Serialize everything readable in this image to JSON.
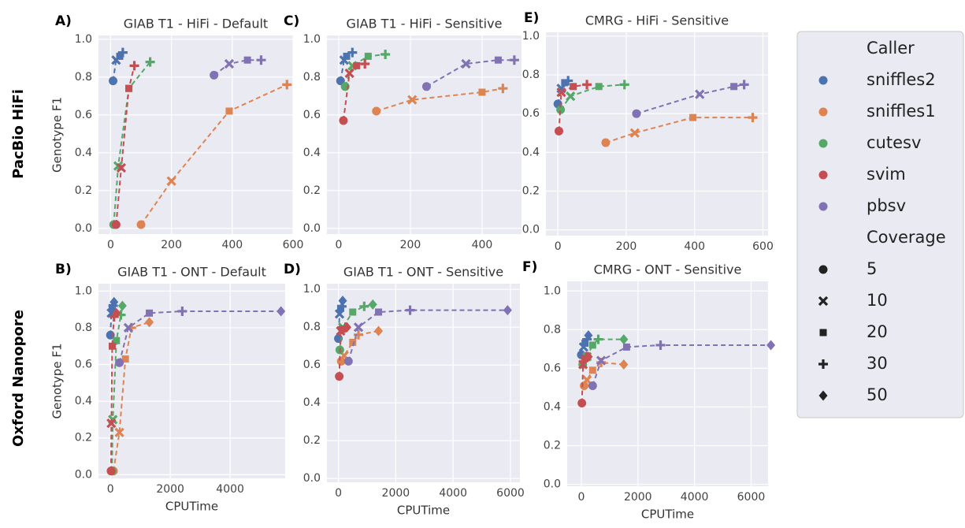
{
  "row_labels": [
    "PacBio HiFi",
    "Oxford Nanopore"
  ],
  "legend": {
    "caller_title": "Caller",
    "callers": [
      {
        "name": "sniffles2",
        "color": "#4c72b0"
      },
      {
        "name": "sniffles1",
        "color": "#dd8452"
      },
      {
        "name": "cutesv",
        "color": "#55a868"
      },
      {
        "name": "svim",
        "color": "#c44e52"
      },
      {
        "name": "pbsv",
        "color": "#8172b3"
      }
    ],
    "coverage_title": "Coverage",
    "coverages": [
      {
        "value": 5,
        "marker": "circle"
      },
      {
        "value": 10,
        "marker": "x"
      },
      {
        "value": 20,
        "marker": "square"
      },
      {
        "value": 30,
        "marker": "plus"
      },
      {
        "value": 50,
        "marker": "diamond"
      }
    ]
  },
  "chart_data": [
    {
      "type": "line",
      "panel": "A)",
      "title": "GIAB T1 - HiFi - Default",
      "ylabel": "Genotype F1",
      "xlim": [
        -40,
        600
      ],
      "ylim": [
        -0.03,
        1.02
      ],
      "xticks": [
        0,
        200,
        400,
        600
      ],
      "yticks": [
        {
          "value": 0,
          "label": "0.0"
        },
        0.2,
        0.4,
        0.6,
        0.8,
        {
          "value": 1,
          "label": "1.0"
        }
      ],
      "grid": true,
      "series": [
        {
          "color": "#4c72b0",
          "x": [
            8,
            18,
            30,
            40
          ],
          "values": [
            0.78,
            0.89,
            0.91,
            0.93
          ],
          "markers": [
            "circle",
            "x",
            "square",
            "plus"
          ]
        },
        {
          "color": "#dd8452",
          "x": [
            100,
            200,
            390,
            580
          ],
          "values": [
            0.02,
            0.25,
            0.62,
            0.76
          ],
          "markers": [
            "circle",
            "x",
            "square",
            "plus"
          ]
        },
        {
          "color": "#55a868",
          "x": [
            10,
            25,
            60,
            130
          ],
          "values": [
            0.02,
            0.33,
            0.74,
            0.88
          ],
          "markers": [
            "circle",
            "x",
            "square",
            "plus"
          ]
        },
        {
          "color": "#c44e52",
          "x": [
            18,
            35,
            60,
            78
          ],
          "values": [
            0.02,
            0.32,
            0.74,
            0.86
          ],
          "markers": [
            "circle",
            "x",
            "square",
            "plus"
          ]
        },
        {
          "color": "#8172b3",
          "x": [
            340,
            390,
            450,
            495
          ],
          "values": [
            0.81,
            0.87,
            0.89,
            0.89
          ],
          "markers": [
            "circle",
            "x",
            "square",
            "plus"
          ]
        }
      ]
    },
    {
      "type": "line",
      "panel": "B)",
      "title": "GIAB T1 - ONT - Default",
      "ylabel": "Genotype F1",
      "xlabel": "CPUTime",
      "xlim": [
        -400,
        5840
      ],
      "ylim": [
        -0.02,
        1.04
      ],
      "xticks": [
        0,
        2000,
        4000
      ],
      "yticks": [
        {
          "value": 0,
          "label": "0.0"
        },
        0.2,
        0.4,
        0.6,
        0.8,
        {
          "value": 1,
          "label": "1.0"
        }
      ],
      "grid": true,
      "series": [
        {
          "color": "#4c72b0",
          "x": [
            0,
            30,
            60,
            90,
            120
          ],
          "values": [
            0.76,
            0.88,
            0.91,
            0.92,
            0.94
          ],
          "markers": [
            "circle",
            "x",
            "square",
            "plus",
            "diamond"
          ]
        },
        {
          "color": "#dd8452",
          "x": [
            100,
            300,
            500,
            700,
            1300
          ],
          "values": [
            0.02,
            0.23,
            0.63,
            0.8,
            0.83
          ],
          "markers": [
            "circle",
            "x",
            "square",
            "plus",
            "diamond"
          ]
        },
        {
          "color": "#55a868",
          "x": [
            50,
            80,
            200,
            350,
            400
          ],
          "values": [
            0.02,
            0.3,
            0.73,
            0.87,
            0.92
          ],
          "markers": [
            "circle",
            "x",
            "square",
            "plus",
            "diamond"
          ]
        },
        {
          "color": "#c44e52",
          "x": [
            20,
            30,
            60,
            120,
            200
          ],
          "values": [
            0.02,
            0.28,
            0.7,
            0.86,
            0.88
          ],
          "markers": [
            "circle",
            "x",
            "square",
            "plus",
            "diamond"
          ]
        },
        {
          "color": "#8172b3",
          "x": [
            300,
            600,
            1300,
            2400,
            5700
          ],
          "values": [
            0.61,
            0.8,
            0.88,
            0.89,
            0.89
          ],
          "markers": [
            "circle",
            "x",
            "square",
            "plus",
            "diamond"
          ]
        }
      ]
    },
    {
      "type": "line",
      "panel": "C)",
      "title": "GIAB T1 - HiFi - Sensitive",
      "xlim": [
        -33,
        510
      ],
      "ylim": [
        -0.03,
        1.02
      ],
      "xticks": [
        0,
        200,
        400
      ],
      "yticks": [
        {
          "value": 0,
          "label": "0.0"
        },
        0.2,
        0.4,
        0.6,
        0.8,
        {
          "value": 1,
          "label": "1.0"
        }
      ],
      "grid": true,
      "series": [
        {
          "color": "#4c72b0",
          "x": [
            5,
            15,
            22,
            38
          ],
          "values": [
            0.78,
            0.89,
            0.91,
            0.93
          ],
          "markers": [
            "circle",
            "x",
            "square",
            "plus"
          ]
        },
        {
          "color": "#dd8452",
          "x": [
            105,
            205,
            400,
            458
          ],
          "values": [
            0.62,
            0.68,
            0.72,
            0.74
          ],
          "markers": [
            "circle",
            "x",
            "square",
            "plus"
          ]
        },
        {
          "color": "#55a868",
          "x": [
            18,
            38,
            82,
            130
          ],
          "values": [
            0.75,
            0.86,
            0.91,
            0.92
          ],
          "markers": [
            "circle",
            "x",
            "square",
            "plus"
          ]
        },
        {
          "color": "#c44e52",
          "x": [
            13,
            30,
            50,
            73
          ],
          "values": [
            0.57,
            0.82,
            0.86,
            0.87
          ],
          "markers": [
            "circle",
            "x",
            "square",
            "plus"
          ]
        },
        {
          "color": "#8172b3",
          "x": [
            245,
            355,
            445,
            490
          ],
          "values": [
            0.75,
            0.87,
            0.89,
            0.89
          ],
          "markers": [
            "circle",
            "x",
            "square",
            "plus"
          ]
        }
      ]
    },
    {
      "type": "line",
      "panel": "D)",
      "title": "GIAB T1 - ONT - Sensitive",
      "xlabel": "CPUTime",
      "xlim": [
        -400,
        6330
      ],
      "ylim": [
        -0.02,
        1.03
      ],
      "xticks": [
        0,
        2000,
        4000,
        6000
      ],
      "yticks": [
        {
          "value": 0,
          "label": "0.0"
        },
        0.2,
        0.4,
        0.6,
        0.8,
        {
          "value": 1,
          "label": "1.0"
        }
      ],
      "grid": true,
      "series": [
        {
          "color": "#4c72b0",
          "x": [
            0,
            40,
            80,
            120,
            150
          ],
          "values": [
            0.74,
            0.87,
            0.9,
            0.91,
            0.94
          ],
          "markers": [
            "circle",
            "x",
            "square",
            "plus",
            "diamond"
          ]
        },
        {
          "color": "#dd8452",
          "x": [
            100,
            200,
            500,
            700,
            1400
          ],
          "values": [
            0.62,
            0.65,
            0.72,
            0.76,
            0.78
          ],
          "markers": [
            "circle",
            "x",
            "square",
            "plus",
            "diamond"
          ]
        },
        {
          "color": "#55a868",
          "x": [
            50,
            150,
            500,
            900,
            1200
          ],
          "values": [
            0.68,
            0.8,
            0.88,
            0.91,
            0.92
          ],
          "markers": [
            "circle",
            "x",
            "square",
            "plus",
            "diamond"
          ]
        },
        {
          "color": "#c44e52",
          "x": [
            30,
            80,
            150,
            250,
            300
          ],
          "values": [
            0.54,
            0.78,
            0.79,
            0.8,
            0.8
          ],
          "markers": [
            "circle",
            "x",
            "square",
            "plus",
            "diamond"
          ]
        },
        {
          "color": "#8172b3",
          "x": [
            350,
            700,
            1400,
            2500,
            5900
          ],
          "values": [
            0.62,
            0.8,
            0.88,
            0.89,
            0.89
          ],
          "markers": [
            "circle",
            "x",
            "square",
            "plus",
            "diamond"
          ]
        }
      ]
    },
    {
      "type": "line",
      "panel": "E)",
      "title": "CMRG - HiFi - Sensitive",
      "xlim": [
        -35,
        615
      ],
      "ylim": [
        -0.03,
        1.02
      ],
      "xticks": [
        0,
        200,
        400,
        600
      ],
      "yticks": [
        {
          "value": 0,
          "label": "0.0"
        },
        0.2,
        0.4,
        0.6,
        0.8,
        {
          "value": 1,
          "label": "1.0"
        }
      ],
      "grid": true,
      "series": [
        {
          "color": "#4c72b0",
          "x": [
            0,
            10,
            20,
            30
          ],
          "values": [
            0.65,
            0.73,
            0.76,
            0.77
          ],
          "markers": [
            "circle",
            "x",
            "square",
            "plus"
          ]
        },
        {
          "color": "#dd8452",
          "x": [
            140,
            225,
            395,
            570
          ],
          "values": [
            0.45,
            0.5,
            0.58,
            0.58
          ],
          "markers": [
            "circle",
            "x",
            "square",
            "plus"
          ]
        },
        {
          "color": "#55a868",
          "x": [
            8,
            37,
            120,
            195
          ],
          "values": [
            0.62,
            0.69,
            0.74,
            0.75
          ],
          "markers": [
            "circle",
            "x",
            "square",
            "plus"
          ]
        },
        {
          "color": "#c44e52",
          "x": [
            3,
            10,
            45,
            85
          ],
          "values": [
            0.51,
            0.71,
            0.74,
            0.75
          ],
          "markers": [
            "circle",
            "x",
            "square",
            "plus"
          ]
        },
        {
          "color": "#8172b3",
          "x": [
            230,
            415,
            515,
            545
          ],
          "values": [
            0.6,
            0.7,
            0.74,
            0.75
          ],
          "markers": [
            "circle",
            "x",
            "square",
            "plus"
          ]
        }
      ]
    },
    {
      "type": "line",
      "panel": "F)",
      "title": "CMRG - ONT - Sensitive",
      "xlabel": "CPUTime",
      "xlim": [
        -500,
        6600
      ],
      "ylim": [
        -0.01,
        1.05
      ],
      "xticks": [
        0,
        2000,
        4000,
        6000
      ],
      "yticks": [
        {
          "value": 0,
          "label": "0.0"
        },
        0.2,
        0.4,
        0.6,
        0.8,
        {
          "value": 1,
          "label": "1.0"
        }
      ],
      "grid": true,
      "series": [
        {
          "color": "#4c72b0",
          "x": [
            0,
            80,
            130,
            200,
            250
          ],
          "values": [
            0.67,
            0.71,
            0.73,
            0.75,
            0.77
          ],
          "markers": [
            "circle",
            "x",
            "square",
            "plus",
            "diamond"
          ]
        },
        {
          "color": "#dd8452",
          "x": [
            100,
            200,
            400,
            700,
            1500
          ],
          "values": [
            0.51,
            0.54,
            0.59,
            0.63,
            0.62
          ],
          "markers": [
            "circle",
            "x",
            "square",
            "plus",
            "diamond"
          ]
        },
        {
          "color": "#55a868",
          "x": [
            50,
            200,
            400,
            600,
            1500
          ],
          "values": [
            0.62,
            0.66,
            0.72,
            0.75,
            0.75
          ],
          "markers": [
            "circle",
            "x",
            "square",
            "plus",
            "diamond"
          ]
        },
        {
          "color": "#c44e52",
          "x": [
            20,
            60,
            120,
            180,
            250
          ],
          "values": [
            0.42,
            0.62,
            0.65,
            0.66,
            0.66
          ],
          "markers": [
            "circle",
            "x",
            "square",
            "plus",
            "diamond"
          ]
        },
        {
          "color": "#8172b3",
          "x": [
            400,
            700,
            1600,
            2800,
            6700
          ],
          "values": [
            0.51,
            0.64,
            0.71,
            0.72,
            0.72
          ],
          "markers": [
            "circle",
            "x",
            "square",
            "plus",
            "diamond"
          ]
        }
      ]
    }
  ]
}
